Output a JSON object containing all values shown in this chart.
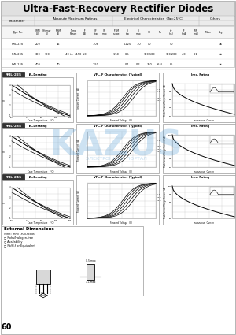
{
  "title": "Ultra-Fast-Recovery Rectifier Diodes",
  "bg_color": "#ffffff",
  "page_number": "60",
  "watermark_text": "KAZUS",
  "subtitle": "ЭЛЕКТРОННЫЙ ПОРТАЛ",
  "models": [
    "FML-22S",
    "FML-23S",
    "FML-24S"
  ],
  "model_label_colors": [
    "#2a2a2a",
    "#2a2a2a",
    "#2a2a2a"
  ],
  "chart_titles_row": [
    "If—Derating",
    "VF—IF Characteristics (Typical)",
    "Irec. Rating"
  ],
  "watermark_color": "#5a9fd4",
  "watermark_alpha": 0.3,
  "title_bg": "#e0e0e0",
  "table_header_bg": "#ebebeb",
  "chart_border": "#888888",
  "grid_color": "#bbbbbb",
  "line_color": "#000000"
}
